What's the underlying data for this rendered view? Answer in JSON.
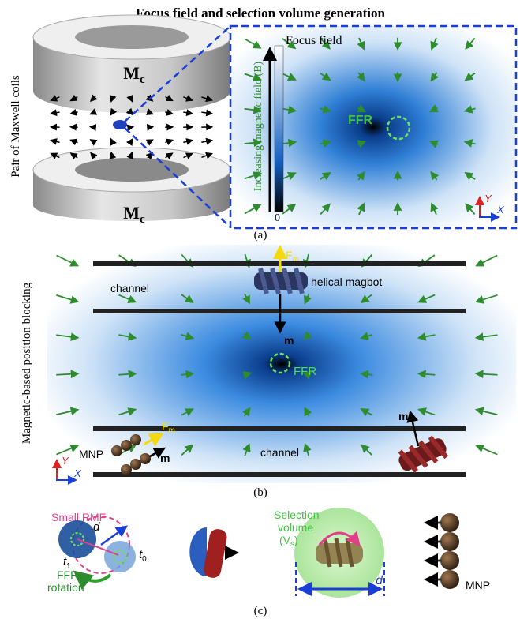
{
  "title": "Focus field and selection volume generation",
  "panel_a": {
    "label": "(a)",
    "side_label": "Pair of Maxwell coils",
    "coil_top": {
      "main": "M",
      "sub": "c"
    },
    "coil_bottom": {
      "main": "M",
      "sub": "c"
    },
    "inset_title": "Focus field",
    "colorbar_label": "Increasing magnetic field (B)",
    "colorbar_zero": "0",
    "ffr": "FFR",
    "axis_y": "Y",
    "axis_x": "X"
  },
  "panel_b": {
    "label": "(b)",
    "side_label": "Magnetic-based  position blocking",
    "channel_top": "channel",
    "channel_bottom": "channel",
    "magbot": "helical magbot",
    "force_top": {
      "main": "F",
      "sub": "m"
    },
    "moment_top": "m",
    "ffr": "FFR",
    "mnp": "MNP",
    "force_mnp": {
      "main": "F",
      "sub": "m"
    },
    "moment_mnp": "m",
    "moment_right": "m",
    "axis_y": "Y",
    "axis_x": "X"
  },
  "panel_c": {
    "label": "(c)",
    "rmf": "Small RMF",
    "distance": "d",
    "t1": {
      "main": "t",
      "sub": "1"
    },
    "t0": {
      "main": "t",
      "sub": "0"
    },
    "ffr_rotation": [
      "FFR",
      "rotation"
    ],
    "selection_volume": [
      "Selection",
      "volume"
    ],
    "vs": {
      "open": "(V",
      "sub": "s",
      "close": ")"
    },
    "diameter": "d",
    "mnp": "MNP"
  }
}
